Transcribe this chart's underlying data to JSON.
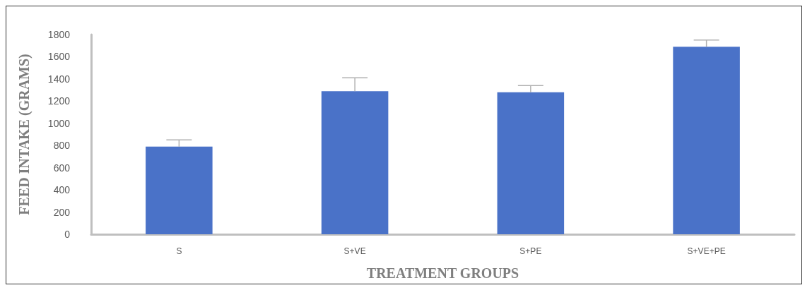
{
  "chart_data": {
    "type": "bar",
    "xlabel": "TREATMENT GROUPS",
    "ylabel": "FEED INTAKE (GRAMS)",
    "categories": [
      "S",
      "S+VE",
      "S+PE",
      "S+VE+PE"
    ],
    "values": [
      790,
      1290,
      1280,
      1690
    ],
    "errors": [
      [
        790,
        850
      ],
      [
        1290,
        1410
      ],
      [
        1280,
        1340
      ],
      [
        1690,
        1750
      ]
    ],
    "color": "#4a72c8",
    "ylim": [
      0,
      1800
    ],
    "yticks": [
      0,
      200,
      400,
      600,
      800,
      1000,
      1200,
      1400,
      1600,
      1800
    ],
    "grid": false
  }
}
